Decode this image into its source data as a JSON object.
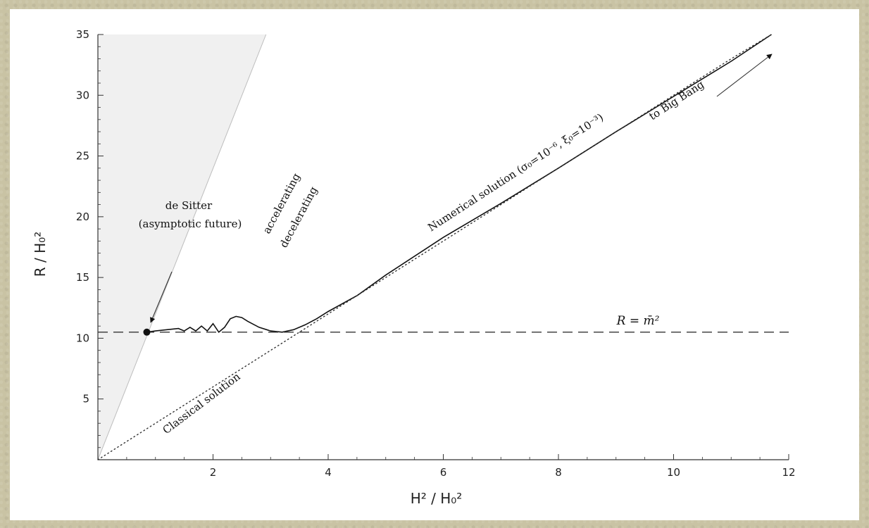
{
  "chart_data": {
    "type": "line",
    "title": "",
    "xlabel": "H² / H₀²",
    "ylabel": "R / H₀²",
    "xlim": [
      0,
      12
    ],
    "ylim": [
      0,
      35
    ],
    "x_ticks": [
      2,
      4,
      6,
      8,
      10,
      12
    ],
    "y_ticks": [
      5,
      10,
      15,
      20,
      25,
      30,
      35
    ],
    "grid": false,
    "shaded_region": {
      "description": "accelerating region above boundary line R = 12 H²/H0²",
      "boundary": [
        [
          0,
          0
        ],
        [
          2.92,
          35
        ]
      ]
    },
    "series": [
      {
        "name": "Numerical solution (σ₀=10⁻⁶, ξ₀=10⁻³)",
        "style": "solid",
        "x": [
          0.85,
          1.0,
          1.2,
          1.4,
          1.5,
          1.6,
          1.7,
          1.8,
          1.9,
          2.0,
          2.1,
          2.2,
          2.3,
          2.4,
          2.5,
          2.6,
          2.8,
          3.0,
          3.2,
          3.4,
          3.6,
          3.8,
          4.0,
          4.5,
          5.0,
          6.0,
          7.0,
          8.0,
          9.0,
          10.0,
          11.0,
          11.7
        ],
        "y": [
          10.5,
          10.6,
          10.7,
          10.8,
          10.6,
          10.9,
          10.6,
          11.0,
          10.6,
          11.2,
          10.5,
          10.9,
          11.6,
          11.8,
          11.7,
          11.4,
          10.9,
          10.6,
          10.5,
          10.7,
          11.1,
          11.6,
          12.2,
          13.5,
          15.2,
          18.3,
          21.1,
          24.0,
          27.0,
          29.9,
          32.8,
          35
        ]
      },
      {
        "name": "Classical solution",
        "style": "dotted",
        "x": [
          0,
          1,
          2,
          3,
          4,
          5,
          6,
          7,
          8,
          9,
          10,
          11,
          11.7
        ],
        "y": [
          0,
          3.0,
          6.0,
          9.0,
          12.0,
          15.0,
          18.0,
          21.0,
          24.0,
          27.0,
          30.0,
          33.0,
          35.0
        ]
      },
      {
        "name": "R = m̄²",
        "style": "dashed",
        "x": [
          0,
          12
        ],
        "y": [
          10.5,
          10.5
        ]
      }
    ],
    "points": [
      {
        "x": 0.85,
        "y": 10.5
      }
    ],
    "annotations": {
      "de_sitter": "de Sitter",
      "asymptotic": "(asymptotic future)",
      "accelerating": "accelerating",
      "decelerating": "decelerating",
      "numerical": "Numerical solution (σ₀=10⁻⁶, ξ₀=10⁻³)",
      "classical": "Classical solution",
      "big_bang": "to Big Bang",
      "r_eq": "R = m̄²"
    }
  }
}
